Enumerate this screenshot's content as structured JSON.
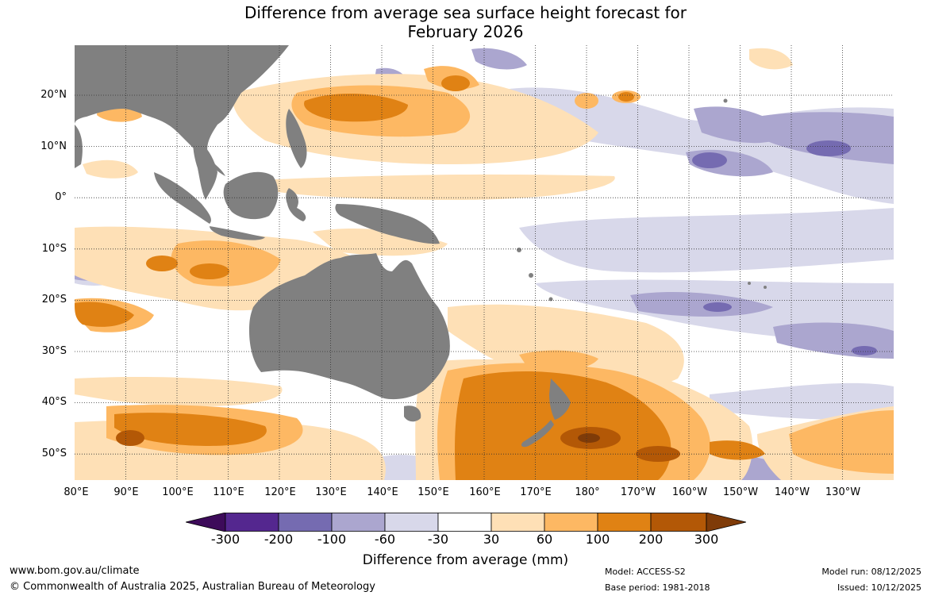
{
  "title": {
    "line1": "Difference from average sea surface height forecast for",
    "line2": "February 2026"
  },
  "map": {
    "latitudes": [
      "20°N",
      "10°N",
      "0°",
      "10°S",
      "20°S",
      "30°S",
      "40°S",
      "50°S"
    ],
    "longitudes": [
      "80°E",
      "90°E",
      "100°E",
      "110°E",
      "120°E",
      "130°E",
      "140°E",
      "150°E",
      "160°E",
      "170°E",
      "180°",
      "170°W",
      "160°W",
      "150°W",
      "140°W",
      "130°W"
    ],
    "land_color": "#808080",
    "grid": "dotted"
  },
  "colorbar": {
    "ticks": [
      "-300",
      "-200",
      "-100",
      "-60",
      "-30",
      "30",
      "60",
      "100",
      "200",
      "300"
    ],
    "colors": [
      "#3d0b5a",
      "#54278f",
      "#756bb1",
      "#aba6cf",
      "#d8d8ea",
      "#ffffff",
      "#fee0b6",
      "#fdb863",
      "#e08214",
      "#b35806",
      "#7f3b08"
    ],
    "title": "Difference from average (mm)"
  },
  "footer": {
    "url": "www.bom.gov.au/climate",
    "copyright": "© Commonwealth of Australia 2025, Australian Bureau of Meteorology",
    "model": "Model: ACCESS-S2",
    "base_period": "Base period: 1981-2018",
    "model_run": "Model run: 08/12/2025",
    "issued": "Issued: 10/12/2025"
  }
}
